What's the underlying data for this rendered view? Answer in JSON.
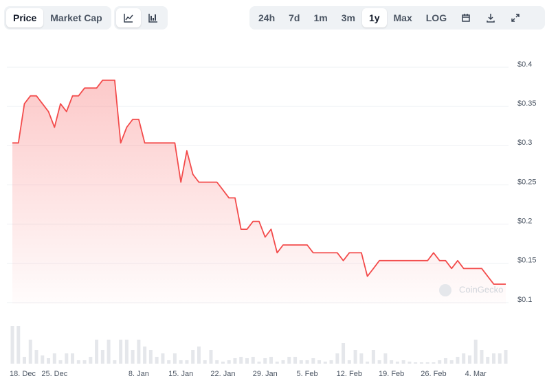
{
  "toolbar": {
    "metrics": [
      "Price",
      "Market Cap"
    ],
    "ranges": [
      "24h",
      "7d",
      "1m",
      "3m",
      "1y",
      "Max",
      "LOG"
    ]
  },
  "watermark": "CoinGecko",
  "chart_data": {
    "type": "line",
    "color": "#f34b4b",
    "grid": true,
    "categories": [
      "18. Dec",
      null,
      null,
      null,
      null,
      null,
      null,
      "25. Dec",
      null,
      null,
      null,
      null,
      null,
      null,
      null,
      null,
      null,
      null,
      null,
      null,
      null,
      "8. Jan",
      null,
      null,
      null,
      null,
      null,
      null,
      "15. Jan",
      null,
      null,
      null,
      null,
      null,
      null,
      "22. Jan",
      null,
      null,
      null,
      null,
      null,
      null,
      "29. Jan",
      null,
      null,
      null,
      null,
      null,
      null,
      "5. Feb",
      null,
      null,
      null,
      null,
      null,
      null,
      "12. Feb",
      null,
      null,
      null,
      null,
      null,
      null,
      "19. Feb",
      null,
      null,
      null,
      null,
      null,
      null,
      "26. Feb",
      null,
      null,
      null,
      null,
      null,
      null,
      "4. Mar",
      null,
      null,
      null,
      null,
      null
    ],
    "values": [
      0.3,
      0.3,
      0.35,
      0.36,
      0.36,
      0.35,
      0.34,
      0.32,
      0.35,
      0.34,
      0.36,
      0.36,
      0.37,
      0.37,
      0.37,
      0.38,
      0.38,
      0.38,
      0.3,
      0.32,
      0.33,
      0.33,
      0.3,
      0.3,
      0.3,
      0.3,
      0.3,
      0.3,
      0.25,
      0.29,
      0.26,
      0.25,
      0.25,
      0.25,
      0.25,
      0.24,
      0.23,
      0.23,
      0.19,
      0.19,
      0.2,
      0.2,
      0.18,
      0.19,
      0.16,
      0.17,
      0.17,
      0.17,
      0.17,
      0.17,
      0.16,
      0.16,
      0.16,
      0.16,
      0.16,
      0.15,
      0.16,
      0.16,
      0.16,
      0.13,
      0.14,
      0.15,
      0.15,
      0.15,
      0.15,
      0.15,
      0.15,
      0.15,
      0.15,
      0.15,
      0.16,
      0.15,
      0.15,
      0.14,
      0.15,
      0.14,
      0.14,
      0.14,
      0.14,
      0.13,
      0.12,
      0.12,
      0.12
    ],
    "ylim": [
      0.1,
      0.4
    ],
    "yticks": [
      {
        "value": 0.4,
        "label": "$0.4"
      },
      {
        "value": 0.35,
        "label": "$0.35"
      },
      {
        "value": 0.3,
        "label": "$0.3"
      },
      {
        "value": 0.25,
        "label": "$0.25"
      },
      {
        "value": 0.2,
        "label": "$0.2"
      },
      {
        "value": 0.15,
        "label": "$0.15"
      },
      {
        "value": 0.1,
        "label": "$0.1"
      }
    ],
    "volume_color": "#e5e7eb",
    "volume_ylim": [
      0,
      60
    ],
    "volumes": [
      55,
      55,
      10,
      35,
      20,
      12,
      8,
      15,
      5,
      15,
      15,
      5,
      5,
      10,
      35,
      20,
      35,
      5,
      35,
      35,
      20,
      35,
      25,
      20,
      10,
      15,
      5,
      15,
      5,
      5,
      20,
      25,
      5,
      20,
      5,
      3,
      5,
      8,
      10,
      8,
      10,
      3,
      8,
      10,
      3,
      5,
      10,
      10,
      5,
      5,
      8,
      5,
      3,
      5,
      15,
      30,
      5,
      20,
      15,
      3,
      20,
      5,
      15,
      5,
      3,
      5,
      3,
      2,
      2,
      2,
      2,
      5,
      8,
      5,
      10,
      15,
      12,
      35,
      20,
      10,
      15,
      15,
      20
    ]
  }
}
